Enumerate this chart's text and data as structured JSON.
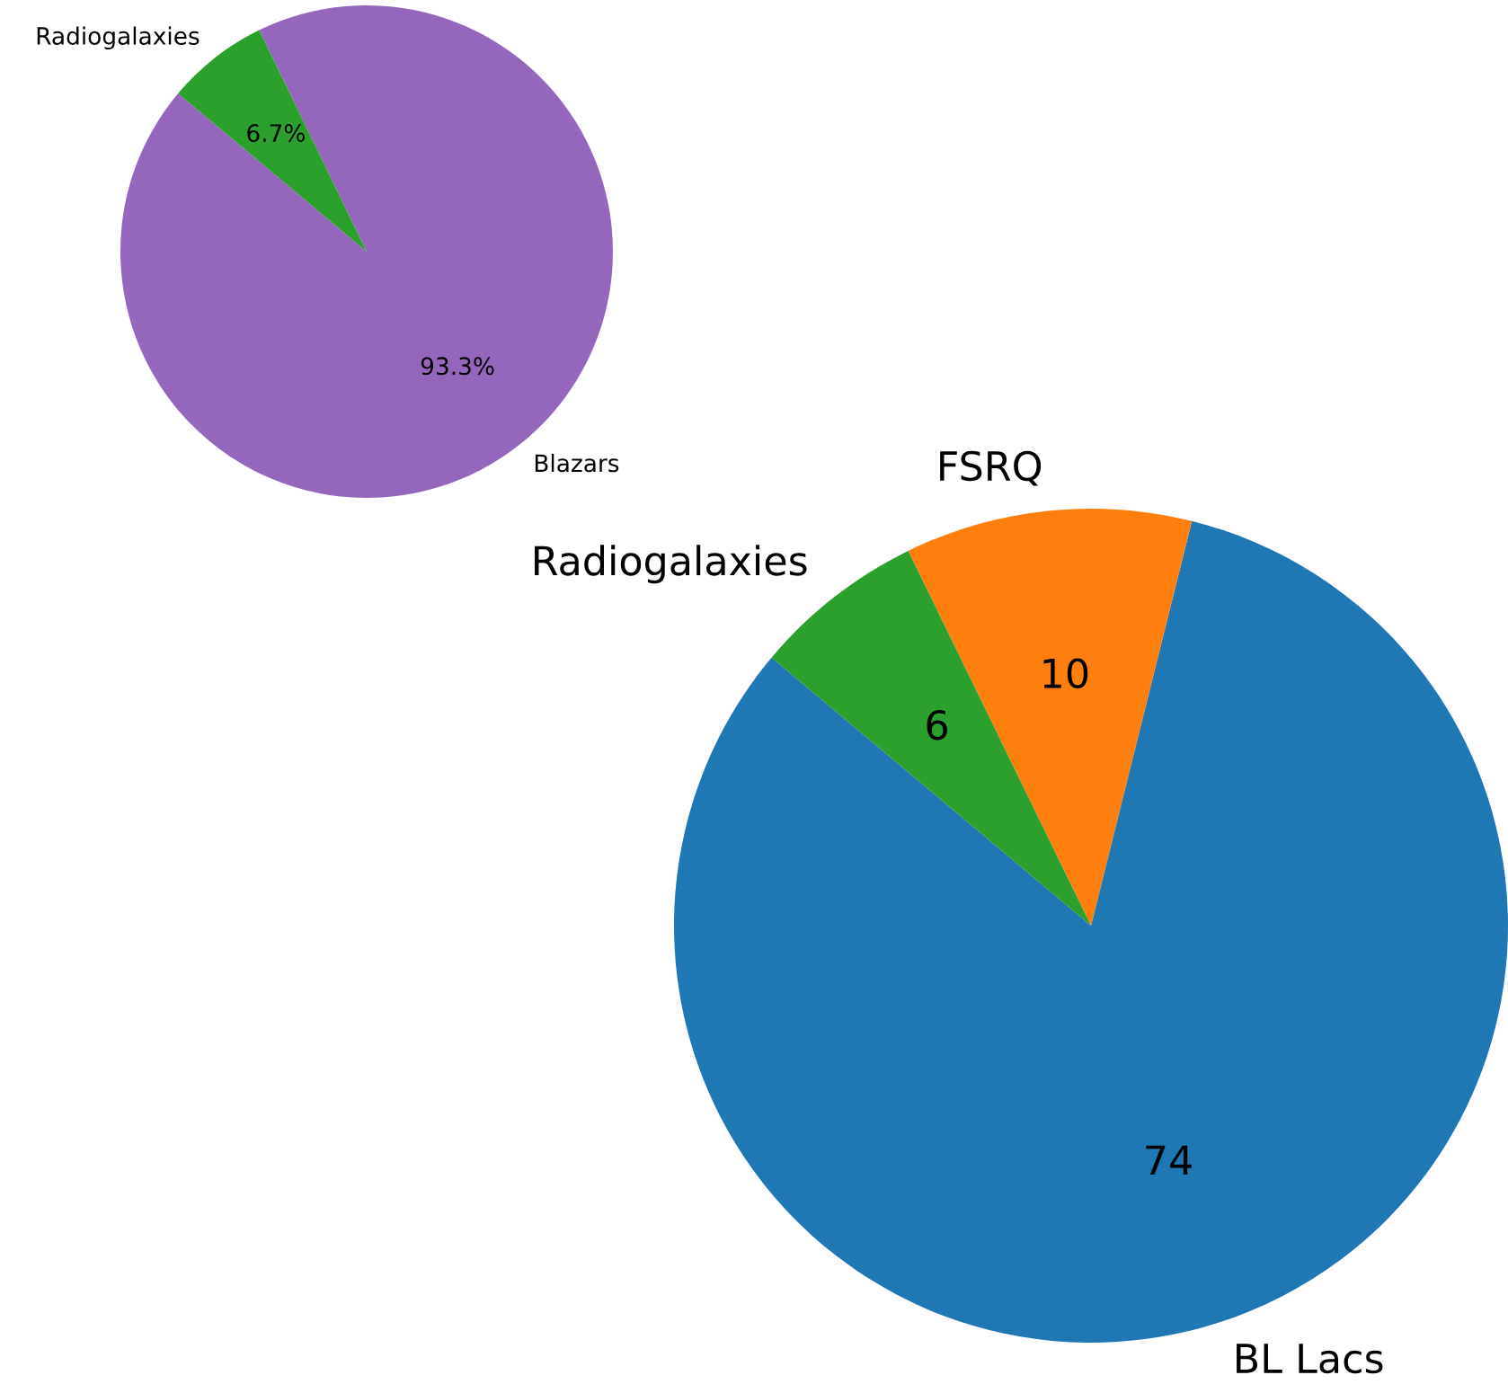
{
  "chart_data": [
    {
      "type": "pie",
      "categories": [
        "Blazars",
        "Radiogalaxies"
      ],
      "values": [
        93.3,
        6.7
      ],
      "colors": [
        "#9467bd",
        "#2ca02c"
      ],
      "value_labels": [
        "93.3%",
        "6.7%"
      ]
    },
    {
      "type": "pie",
      "categories": [
        "BL Lacs",
        "FSRQ",
        "Radiogalaxies"
      ],
      "values": [
        74,
        10,
        6
      ],
      "colors": [
        "#1f77b4",
        "#ff7f0e",
        "#2ca02c"
      ],
      "data_labels": true
    }
  ]
}
